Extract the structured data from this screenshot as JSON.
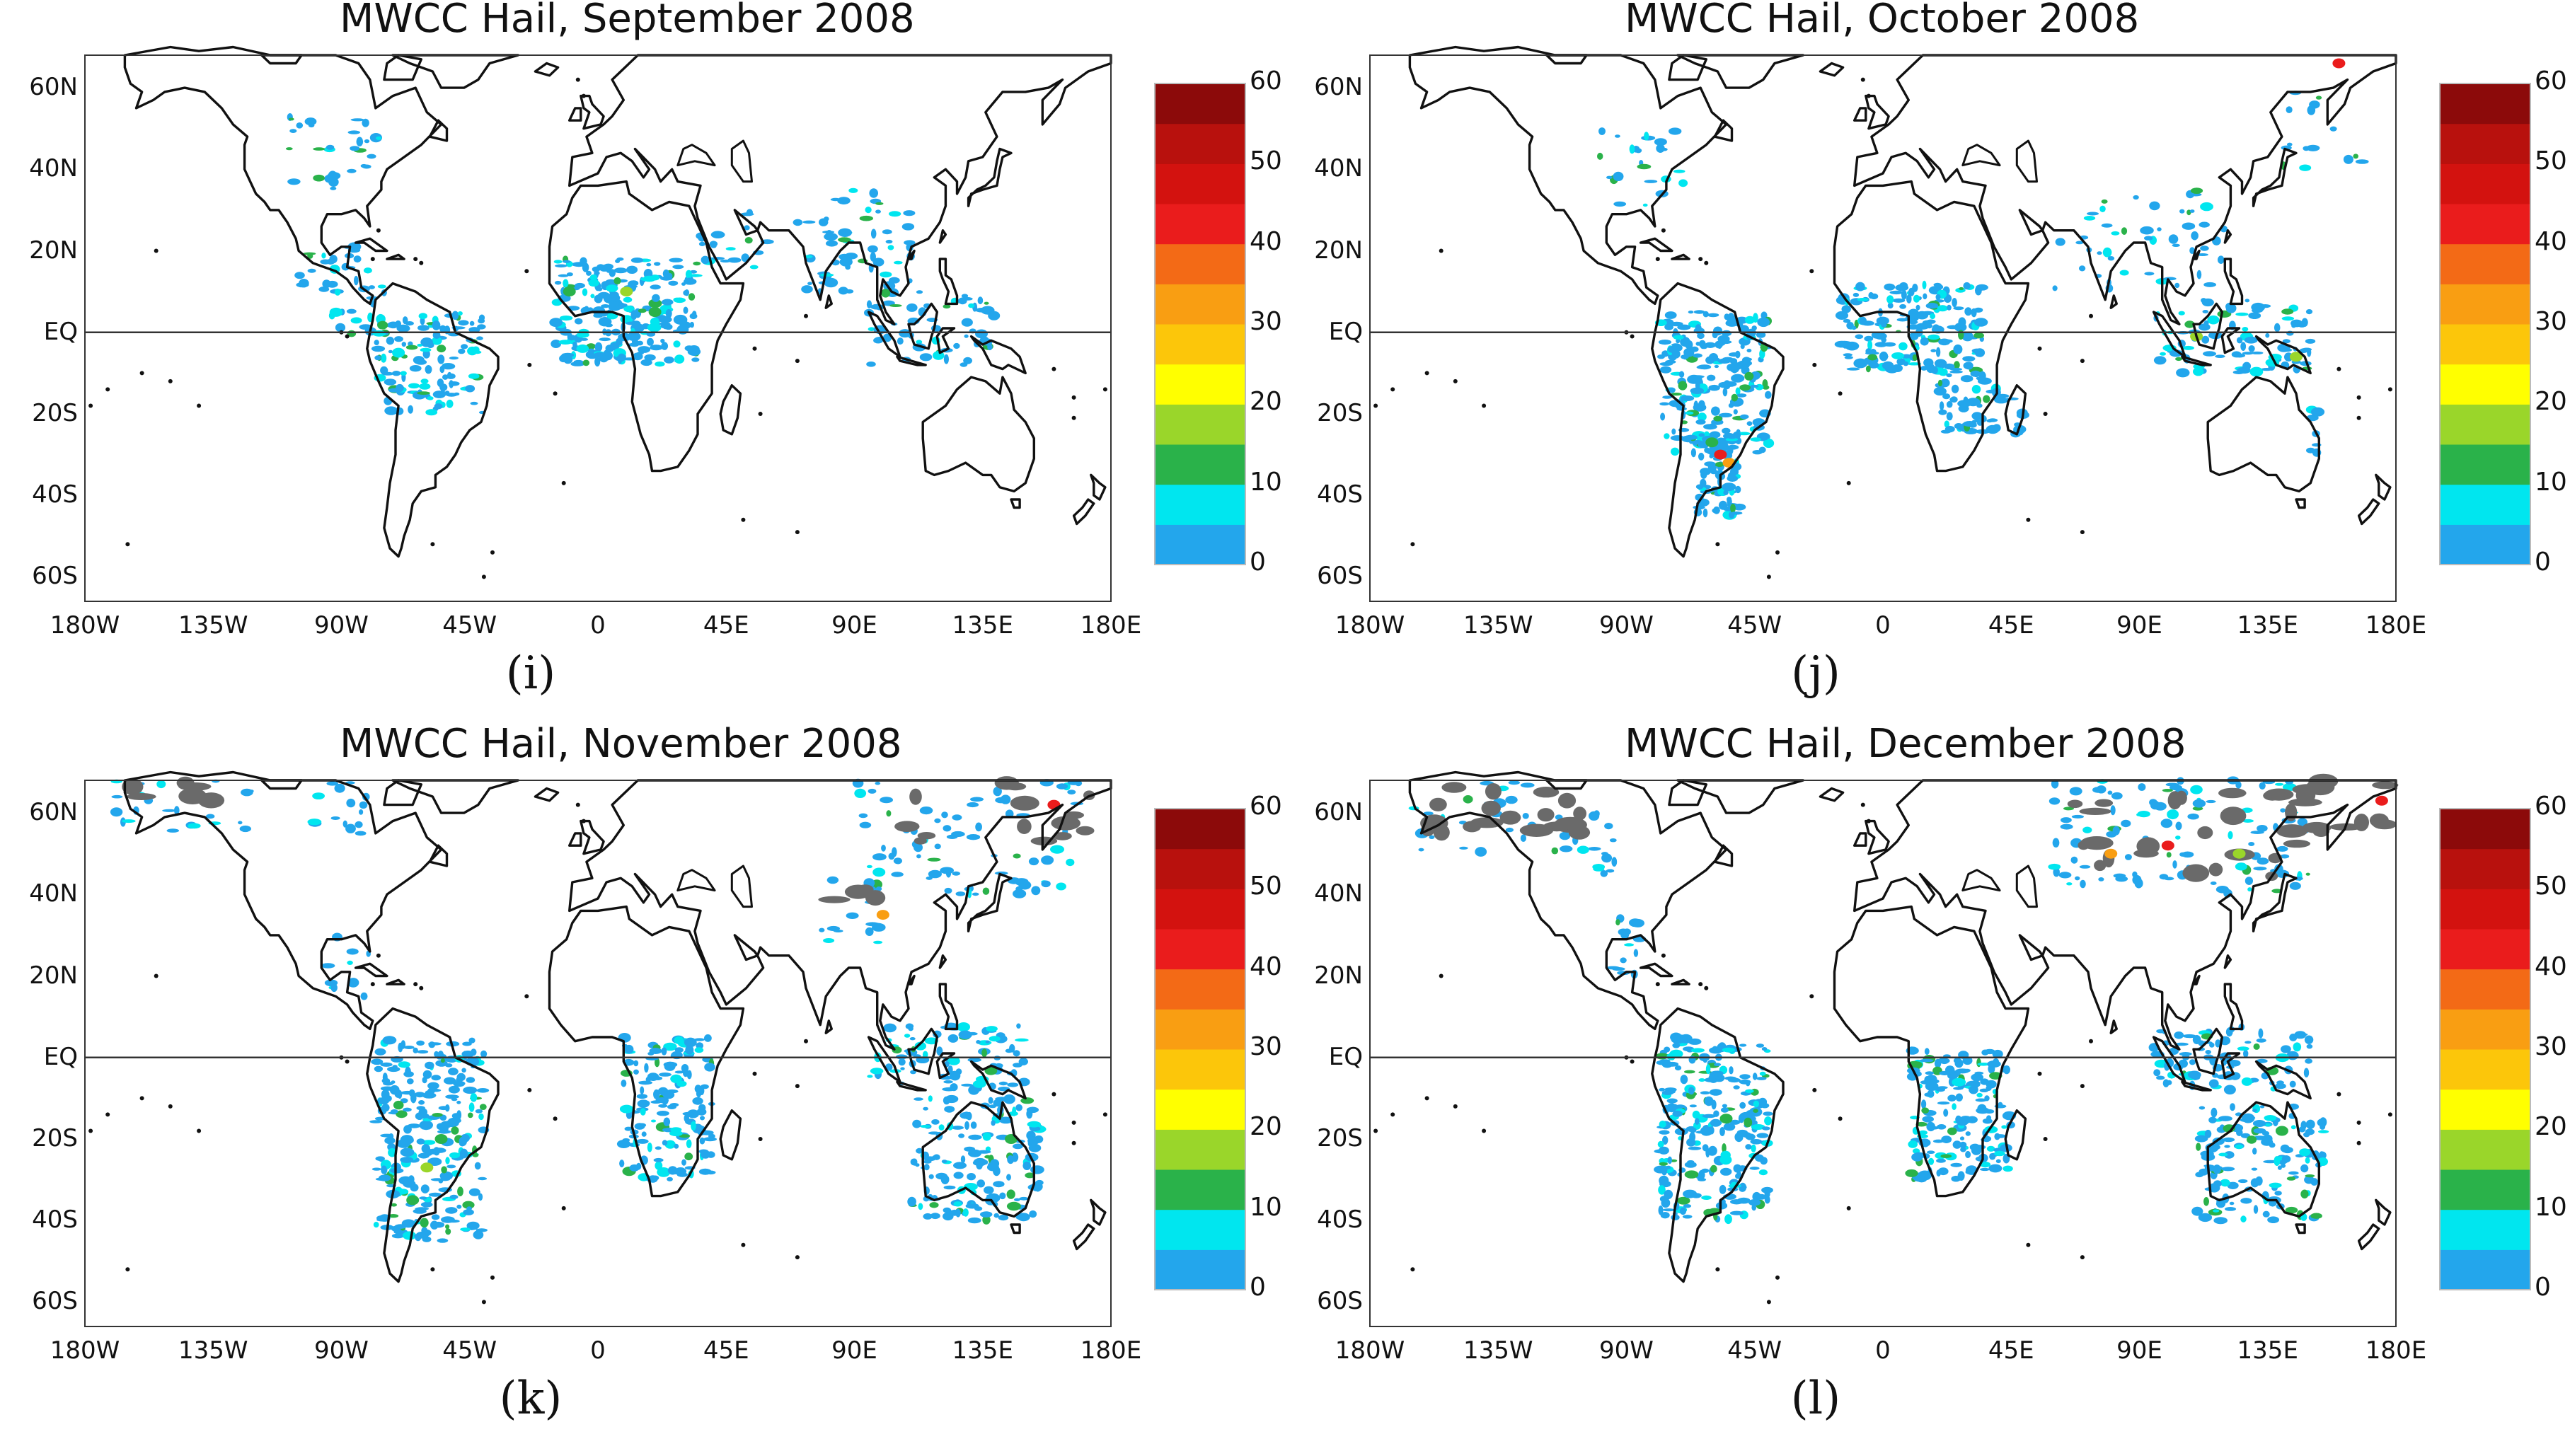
{
  "figure": {
    "panels": [
      {
        "title": "MWCC Hail, September 2008",
        "label": "(i)"
      },
      {
        "title": "MWCC Hail, October 2008",
        "label": "(j)"
      },
      {
        "title": "MWCC Hail, November 2008",
        "label": "(k)"
      },
      {
        "title": "MWCC Hail, December 2008",
        "label": "(l)"
      }
    ],
    "lat_labels": [
      "60N",
      "40N",
      "20N",
      "EQ",
      "20S",
      "40S",
      "60S"
    ],
    "lon_labels": [
      "180W",
      "135W",
      "90W",
      "45W",
      "0",
      "45E",
      "90E",
      "135E",
      "180E"
    ],
    "colorbar": {
      "ticks": [
        "0",
        "10",
        "20",
        "30",
        "40",
        "50",
        "60"
      ],
      "colors": [
        "#23a6ec",
        "#00e6ef",
        "#2ab24a",
        "#9ad62a",
        "#ffff00",
        "#fcc60a",
        "#f99e12",
        "#f36a16",
        "#ea1c1c",
        "#d3120f",
        "#b8110d",
        "#8c0a0a"
      ]
    },
    "hail_color": "#23a6ec",
    "snow_color": "#6a6a6a"
  }
}
